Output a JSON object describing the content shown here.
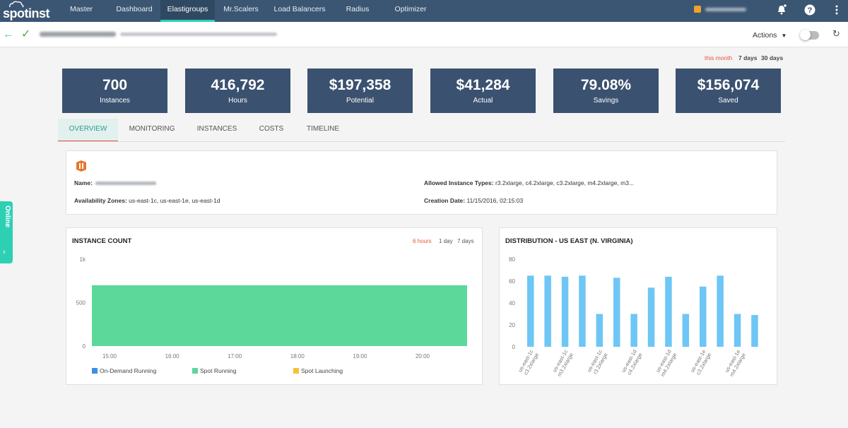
{
  "brand": {
    "name": "spotinst"
  },
  "nav": {
    "items": [
      {
        "label": "Master"
      },
      {
        "label": "Dashboard"
      },
      {
        "label": "Elastigroups"
      },
      {
        "label": "Mr.Scalers"
      },
      {
        "label": "Load Balancers"
      },
      {
        "label": "Radius"
      },
      {
        "label": "Optimizer"
      }
    ],
    "active": "Elastigroups"
  },
  "subheader": {
    "actions_label": "Actions"
  },
  "time_range": {
    "options": [
      "this month",
      "7 days",
      "30 days"
    ],
    "active": "this month"
  },
  "stats": [
    {
      "value": "700",
      "label": "Instances"
    },
    {
      "value": "416,792",
      "label": "Hours"
    },
    {
      "value": "$197,358",
      "label": "Potential"
    },
    {
      "value": "$41,284",
      "label": "Actual"
    },
    {
      "value": "79.08%",
      "label": "Savings"
    },
    {
      "value": "$156,074",
      "label": "Saved"
    }
  ],
  "tabs": [
    "OVERVIEW",
    "MONITORING",
    "INSTANCES",
    "COSTS",
    "TIMELINE"
  ],
  "info": {
    "name_label": "Name:",
    "zones_label": "Availability Zones:",
    "zones_value": "us-east-1c, us-east-1e, us-east-1d",
    "types_label": "Allowed Instance Types:",
    "types_value": "r3.2xlarge, c4.2xlarge, c3.2xlarge, m4.2xlarge, m3...",
    "created_label": "Creation Date:",
    "created_value": "11/15/2016, 02:15:03"
  },
  "instance_count": {
    "title": "INSTANCE COUNT",
    "ranges": [
      "6 hours",
      "1 day",
      "7 days"
    ],
    "active_range": "6 hours",
    "legend": [
      {
        "label": "On-Demand Running",
        "color": "#3d8fe0"
      },
      {
        "label": "Spot Running",
        "color": "#5cd89a"
      },
      {
        "label": "Spot Launching",
        "color": "#f4c430"
      }
    ]
  },
  "distribution": {
    "title": "DISTRIBUTION - US EAST (N. VIRGINIA)"
  },
  "colors": {
    "nav_bg": "#3b5673",
    "card_bg": "#3b5170",
    "accent": "#2ed0b4",
    "highlight": "#e8543d",
    "bar": "#6ec6f5",
    "area": "#5cd89a"
  },
  "side_tab": {
    "label": "Online"
  },
  "chart_data": [
    {
      "type": "area",
      "title": "INSTANCE COUNT",
      "x": [
        "15:00",
        "16:00",
        "17:00",
        "18:00",
        "19:00",
        "20:00"
      ],
      "yticks": [
        "0",
        "500",
        "1k"
      ],
      "ylim": [
        0,
        1000
      ],
      "series": [
        {
          "name": "On-Demand Running",
          "values": [
            0,
            0,
            0,
            0,
            0,
            0
          ]
        },
        {
          "name": "Spot Running",
          "values": [
            700,
            700,
            700,
            700,
            700,
            700
          ]
        },
        {
          "name": "Spot Launching",
          "values": [
            0,
            0,
            0,
            0,
            0,
            0
          ]
        }
      ]
    },
    {
      "type": "bar",
      "title": "DISTRIBUTION - US EAST (N. VIRGINIA)",
      "yticks": [
        "0",
        "20",
        "40",
        "60",
        "80"
      ],
      "ylim": [
        0,
        80
      ],
      "categories": [
        "us-east-1c c3.2xlarge",
        "",
        "us-east-1c m3.2xlarge",
        "",
        "us-east-1c r3.2xlarge",
        "",
        "us-east-1d c4.2xlarge",
        "",
        "us-east-1d m4.2xlarge",
        "",
        "us-east-1e c3.2xlarge",
        "",
        "us-east-1e m4.2xlarge",
        ""
      ],
      "values": [
        65,
        65,
        64,
        65,
        30,
        63,
        30,
        54,
        64,
        30,
        55,
        65,
        30,
        29
      ]
    }
  ]
}
